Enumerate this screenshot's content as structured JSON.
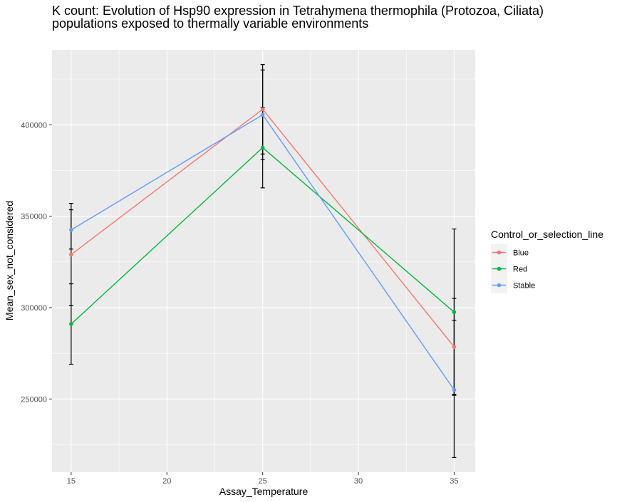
{
  "chart_data": {
    "type": "line",
    "title_lines": [
      "K count: Evolution of Hsp90 expression in Tetrahymena thermophila (Protozoa, Ciliata)",
      "populations exposed to thermally variable environments"
    ],
    "xlabel": "Assay_Temperature",
    "ylabel": "Mean_sex_not_considered",
    "x": [
      15,
      25,
      35
    ],
    "xlim": [
      14,
      36.1
    ],
    "ylim": [
      210000,
      441000
    ],
    "x_ticks": [
      15,
      20,
      25,
      30,
      35
    ],
    "x_minor_ticks": [
      17.5,
      22.5,
      27.5,
      32.5
    ],
    "y_ticks": [
      250000,
      300000,
      350000,
      400000
    ],
    "y_tick_labels": [
      "250000",
      "300000",
      "350000",
      "400000"
    ],
    "y_minor_ticks": [
      225000,
      275000,
      325000,
      375000,
      425000
    ],
    "grid": true,
    "legend_title": "Control_or_selection_line",
    "legend_position": "right",
    "series": [
      {
        "name": "Blue",
        "color": "#F8766D",
        "values": [
          329000,
          408500,
          278500
        ],
        "error_lower": [
          301000,
          384000,
          252500
        ],
        "error_upper": [
          357000,
          433000,
          305000
        ]
      },
      {
        "name": "Red",
        "color": "#00BA38",
        "values": [
          291000,
          387500,
          297500
        ],
        "error_lower": [
          269000,
          365500,
          252000
        ],
        "error_upper": [
          313000,
          409500,
          343000
        ]
      },
      {
        "name": "Stable",
        "color": "#619CFF",
        "values": [
          342500,
          405500,
          255000
        ],
        "error_lower": [
          332000,
          381000,
          218000
        ],
        "error_upper": [
          353500,
          430000,
          293000
        ]
      }
    ]
  }
}
